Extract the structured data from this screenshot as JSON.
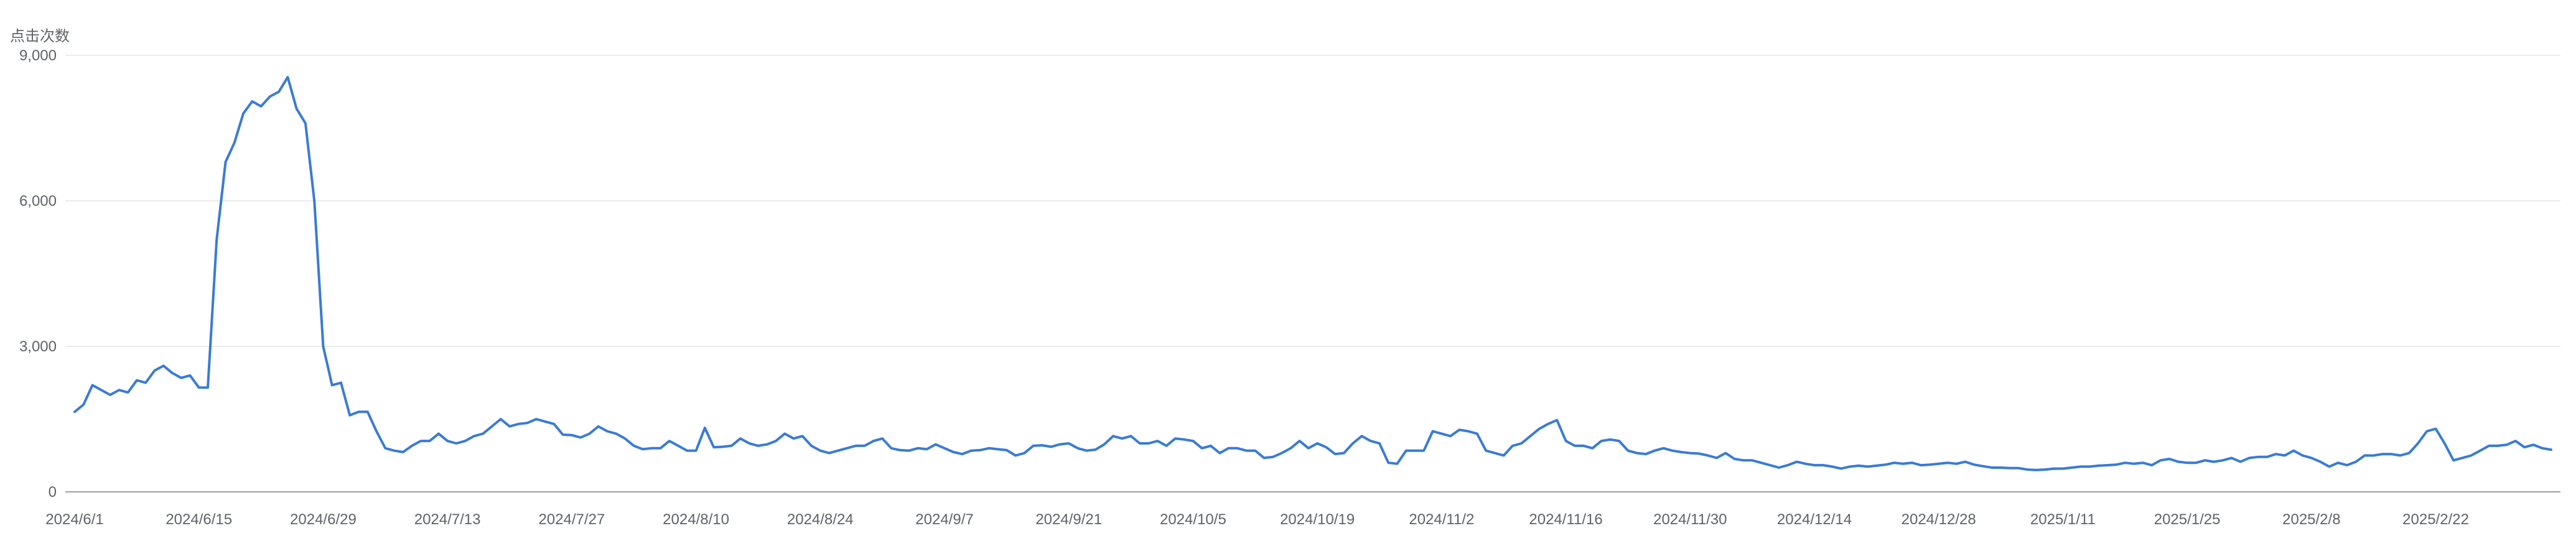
{
  "chart_data": {
    "type": "line",
    "ylabel": "点击次数",
    "xlabel": "",
    "title": "",
    "ylim": [
      0,
      9000
    ],
    "yticks": [
      {
        "value": 0,
        "label": "0"
      },
      {
        "value": 3000,
        "label": "3,000"
      },
      {
        "value": 6000,
        "label": "6,000"
      },
      {
        "value": 9000,
        "label": "9,000"
      }
    ],
    "start_date": "2024-06-01",
    "xticks": [
      {
        "index": 0,
        "label": "2024/6/1"
      },
      {
        "index": 14,
        "label": "2024/6/15"
      },
      {
        "index": 28,
        "label": "2024/6/29"
      },
      {
        "index": 42,
        "label": "2024/7/13"
      },
      {
        "index": 56,
        "label": "2024/7/27"
      },
      {
        "index": 70,
        "label": "2024/8/10"
      },
      {
        "index": 84,
        "label": "2024/8/24"
      },
      {
        "index": 98,
        "label": "2024/9/7"
      },
      {
        "index": 112,
        "label": "2024/9/21"
      },
      {
        "index": 126,
        "label": "2024/10/5"
      },
      {
        "index": 140,
        "label": "2024/10/19"
      },
      {
        "index": 154,
        "label": "2024/11/2"
      },
      {
        "index": 168,
        "label": "2024/11/16"
      },
      {
        "index": 182,
        "label": "2024/11/30"
      },
      {
        "index": 196,
        "label": "2024/12/14"
      },
      {
        "index": 210,
        "label": "2024/12/28"
      },
      {
        "index": 224,
        "label": "2025/1/11"
      },
      {
        "index": 238,
        "label": "2025/1/25"
      },
      {
        "index": 252,
        "label": "2025/2/8"
      },
      {
        "index": 266,
        "label": "2025/2/22"
      }
    ],
    "grid": true,
    "legend": "none",
    "series": [
      {
        "color": "#3a7bd5",
        "values": [
          1650,
          1800,
          2200,
          2100,
          2000,
          2100,
          2050,
          2300,
          2250,
          2500,
          2600,
          2450,
          2350,
          2400,
          2150,
          2150,
          5200,
          6800,
          7200,
          7800,
          8050,
          7950,
          8150,
          8250,
          8550,
          7900,
          7600,
          6000,
          3000,
          2200,
          2250,
          1580,
          1650,
          1650,
          1250,
          900,
          850,
          820,
          950,
          1050,
          1050,
          1200,
          1050,
          1000,
          1050,
          1150,
          1200,
          1350,
          1500,
          1350,
          1400,
          1420,
          1500,
          1450,
          1400,
          1180,
          1170,
          1120,
          1200,
          1350,
          1250,
          1200,
          1100,
          950,
          880,
          900,
          900,
          1050,
          950,
          850,
          850,
          1320,
          920,
          930,
          950,
          1100,
          1000,
          950,
          980,
          1050,
          1200,
          1100,
          1150,
          950,
          850,
          800,
          850,
          900,
          950,
          950,
          1050,
          1100,
          900,
          860,
          850,
          900,
          880,
          980,
          900,
          820,
          780,
          850,
          860,
          900,
          880,
          860,
          750,
          800,
          950,
          960,
          930,
          980,
          1000,
          900,
          850,
          870,
          980,
          1150,
          1100,
          1150,
          1000,
          1000,
          1050,
          950,
          1100,
          1080,
          1050,
          900,
          950,
          800,
          900,
          900,
          850,
          850,
          700,
          720,
          800,
          900,
          1050,
          900,
          1000,
          920,
          780,
          800,
          1000,
          1150,
          1050,
          1000,
          600,
          580,
          850,
          850,
          850,
          1250,
          1200,
          1150,
          1280,
          1250,
          1200,
          850,
          800,
          750,
          950,
          1000,
          1150,
          1300,
          1400,
          1480,
          1050,
          950,
          950,
          900,
          1050,
          1080,
          1050,
          850,
          800,
          780,
          850,
          900,
          850,
          820,
          800,
          790,
          750,
          700,
          800,
          680,
          650,
          650,
          600,
          550,
          500,
          550,
          620,
          580,
          550,
          550,
          520,
          480,
          520,
          540,
          520,
          540,
          560,
          600,
          580,
          600,
          550,
          560,
          580,
          600,
          580,
          620,
          560,
          530,
          500,
          500,
          490,
          490,
          460,
          450,
          460,
          480,
          480,
          500,
          520,
          520,
          540,
          550,
          560,
          600,
          580,
          600,
          550,
          650,
          680,
          620,
          600,
          600,
          650,
          620,
          650,
          700,
          620,
          700,
          720,
          720,
          780,
          750,
          850,
          750,
          700,
          620,
          520,
          600,
          550,
          620,
          750,
          750,
          780,
          780,
          750,
          800,
          1000,
          1250,
          1300,
          1000,
          650,
          700,
          750,
          850,
          950,
          950,
          970,
          1050,
          920,
          970,
          900,
          870
        ]
      }
    ]
  }
}
